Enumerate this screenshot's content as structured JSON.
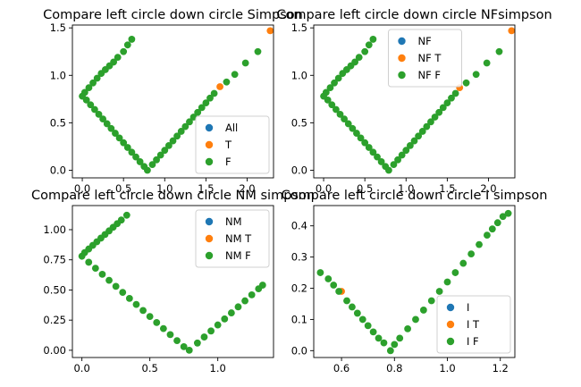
{
  "colors": {
    "all": "#1f77b4",
    "t": "#ff7f0e",
    "f": "#2ca02c"
  },
  "chart_data": [
    {
      "type": "scatter",
      "title": "Compare left circle down circle Simpson",
      "xlim": [
        -0.12,
        2.32
      ],
      "ylim": [
        -0.08,
        1.53
      ],
      "xticks": [
        "0.0",
        "0.5",
        "1.0",
        "1.5",
        "2.0"
      ],
      "yticks": [
        "0.0",
        "0.5",
        "1.0",
        "1.5"
      ],
      "legend": {
        "placement": "lower right",
        "entries": [
          "All",
          "T",
          "F"
        ]
      },
      "series": [
        {
          "name": "All",
          "color": "#1f77b4",
          "x": [],
          "y": []
        },
        {
          "name": "T",
          "color": "#ff7f0e",
          "x": [
            1.67,
            2.28
          ],
          "y": [
            0.88,
            1.47
          ]
        },
        {
          "name": "F",
          "color": "#2ca02c",
          "x": [
            0.0,
            0.05,
            0.1,
            0.15,
            0.2,
            0.25,
            0.3,
            0.35,
            0.4,
            0.45,
            0.5,
            0.55,
            0.6,
            0.65,
            0.7,
            0.75,
            0.79,
            0.85,
            0.9,
            0.95,
            1.0,
            1.05,
            1.1,
            1.15,
            1.2,
            1.25,
            1.3,
            1.35,
            1.4,
            1.45,
            1.5,
            1.55,
            1.6,
            0.03,
            0.08,
            0.13,
            0.18,
            0.23,
            0.28,
            0.33,
            0.38,
            0.43,
            0.5,
            0.55,
            0.6,
            1.75,
            1.85,
            1.98,
            2.13
          ],
          "y": [
            0.78,
            0.74,
            0.69,
            0.64,
            0.59,
            0.54,
            0.49,
            0.44,
            0.39,
            0.34,
            0.29,
            0.24,
            0.19,
            0.14,
            0.09,
            0.04,
            0.0,
            0.06,
            0.11,
            0.16,
            0.21,
            0.26,
            0.31,
            0.36,
            0.41,
            0.46,
            0.51,
            0.56,
            0.61,
            0.66,
            0.71,
            0.76,
            0.81,
            0.82,
            0.87,
            0.92,
            0.97,
            1.02,
            1.06,
            1.1,
            1.14,
            1.19,
            1.25,
            1.32,
            1.38,
            0.93,
            1.01,
            1.13,
            1.25
          ]
        }
      ]
    },
    {
      "type": "scatter",
      "title": "Compare left circle down circle NFsimpson",
      "xlim": [
        -0.12,
        2.32
      ],
      "ylim": [
        -0.08,
        1.53
      ],
      "xticks": [
        "0.0",
        "0.5",
        "1.0",
        "1.5",
        "2.0"
      ],
      "yticks": [
        "0.0",
        "0.5",
        "1.0",
        "1.5"
      ],
      "legend": {
        "placement": "upper center",
        "entries": [
          "NF",
          "NF T",
          "NF F"
        ]
      },
      "series": [
        {
          "name": "NF",
          "color": "#1f77b4",
          "x": [],
          "y": []
        },
        {
          "name": "NF T",
          "color": "#ff7f0e",
          "x": [
            1.65,
            2.28
          ],
          "y": [
            0.87,
            1.47
          ]
        },
        {
          "name": "NF F",
          "color": "#2ca02c",
          "x": [
            0.0,
            0.05,
            0.1,
            0.15,
            0.2,
            0.25,
            0.3,
            0.35,
            0.4,
            0.45,
            0.5,
            0.55,
            0.6,
            0.65,
            0.7,
            0.75,
            0.79,
            0.85,
            0.9,
            0.95,
            1.0,
            1.05,
            1.1,
            1.15,
            1.2,
            1.25,
            1.3,
            1.35,
            1.4,
            1.45,
            1.5,
            1.55,
            1.6,
            0.03,
            0.08,
            0.13,
            0.18,
            0.23,
            0.28,
            0.33,
            0.38,
            0.43,
            0.5,
            0.55,
            0.6,
            1.73,
            1.85,
            1.98,
            2.13
          ],
          "y": [
            0.78,
            0.74,
            0.69,
            0.64,
            0.59,
            0.54,
            0.49,
            0.44,
            0.39,
            0.34,
            0.29,
            0.24,
            0.19,
            0.14,
            0.09,
            0.04,
            0.0,
            0.06,
            0.11,
            0.16,
            0.21,
            0.26,
            0.31,
            0.36,
            0.41,
            0.46,
            0.51,
            0.56,
            0.61,
            0.66,
            0.71,
            0.76,
            0.81,
            0.82,
            0.87,
            0.92,
            0.97,
            1.02,
            1.06,
            1.1,
            1.14,
            1.19,
            1.25,
            1.32,
            1.38,
            0.92,
            1.01,
            1.13,
            1.25
          ]
        }
      ]
    },
    {
      "type": "scatter",
      "title": "Compare left circle down circle NM simpson",
      "xlim": [
        -0.07,
        1.41
      ],
      "ylim": [
        -0.06,
        1.2
      ],
      "xticks": [
        "0.0",
        "0.5",
        "1.0"
      ],
      "yticks": [
        "0.00",
        "0.25",
        "0.50",
        "0.75",
        "1.00"
      ],
      "legend": {
        "placement": "upper right",
        "entries": [
          "NM",
          "NM T",
          "NM F"
        ]
      },
      "series": [
        {
          "name": "NM",
          "color": "#1f77b4",
          "x": [],
          "y": []
        },
        {
          "name": "NM T",
          "color": "#ff7f0e",
          "x": [],
          "y": []
        },
        {
          "name": "NM F",
          "color": "#2ca02c",
          "x": [
            0.0,
            0.05,
            0.1,
            0.15,
            0.2,
            0.25,
            0.3,
            0.35,
            0.4,
            0.45,
            0.5,
            0.55,
            0.6,
            0.65,
            0.7,
            0.75,
            0.79,
            0.85,
            0.9,
            0.95,
            1.0,
            1.05,
            1.1,
            1.15,
            1.2,
            1.25,
            1.3,
            1.33,
            0.02,
            0.05,
            0.08,
            0.11,
            0.14,
            0.17,
            0.2,
            0.23,
            0.26,
            0.29,
            0.33
          ],
          "y": [
            0.78,
            0.73,
            0.68,
            0.63,
            0.58,
            0.53,
            0.48,
            0.43,
            0.38,
            0.33,
            0.28,
            0.23,
            0.18,
            0.13,
            0.08,
            0.03,
            0.0,
            0.06,
            0.11,
            0.16,
            0.21,
            0.26,
            0.31,
            0.36,
            0.41,
            0.46,
            0.51,
            0.54,
            0.81,
            0.84,
            0.87,
            0.9,
            0.93,
            0.96,
            0.99,
            1.02,
            1.05,
            1.08,
            1.12
          ]
        }
      ]
    },
    {
      "type": "scatter",
      "title": "Compare left circle down circle I simpson",
      "xlim": [
        0.495,
        1.255
      ],
      "ylim": [
        -0.022,
        0.465
      ],
      "xticks": [
        "0.6",
        "0.8",
        "1.0",
        "1.2"
      ],
      "yticks": [
        "0.0",
        "0.1",
        "0.2",
        "0.3",
        "0.4"
      ],
      "legend": {
        "placement": "lower right",
        "entries": [
          "I",
          "I T",
          "I F"
        ]
      },
      "series": [
        {
          "name": "I",
          "color": "#1f77b4",
          "x": [],
          "y": []
        },
        {
          "name": "I T",
          "color": "#ff7f0e",
          "x": [
            0.6
          ],
          "y": [
            0.19
          ]
        },
        {
          "name": "I F",
          "color": "#2ca02c",
          "x": [
            0.52,
            0.55,
            0.57,
            0.59,
            0.62,
            0.64,
            0.66,
            0.68,
            0.7,
            0.72,
            0.74,
            0.76,
            0.785,
            0.8,
            0.82,
            0.85,
            0.88,
            0.91,
            0.94,
            0.97,
            1.0,
            1.03,
            1.06,
            1.09,
            1.12,
            1.15,
            1.17,
            1.19,
            1.21,
            1.23
          ],
          "y": [
            0.25,
            0.23,
            0.21,
            0.19,
            0.16,
            0.14,
            0.12,
            0.1,
            0.08,
            0.06,
            0.04,
            0.025,
            0.0,
            0.02,
            0.04,
            0.07,
            0.1,
            0.13,
            0.16,
            0.19,
            0.22,
            0.25,
            0.28,
            0.31,
            0.34,
            0.37,
            0.39,
            0.41,
            0.43,
            0.44
          ]
        }
      ]
    }
  ]
}
